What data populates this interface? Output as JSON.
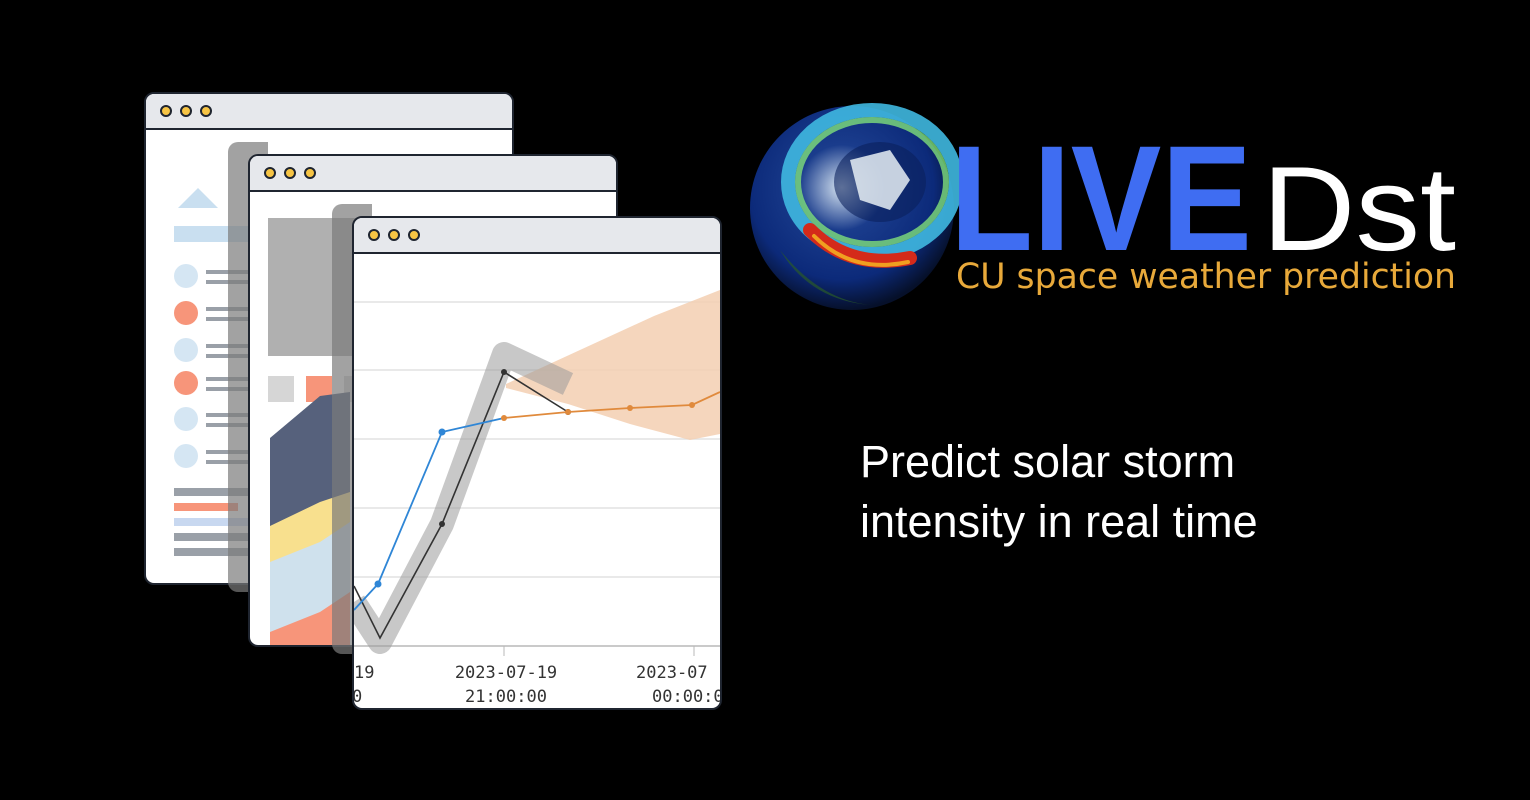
{
  "brand": {
    "name_part1": "LIVE",
    "name_part2": "Dst",
    "subtitle": "CU space weather prediction"
  },
  "tagline": {
    "line1": "Predict solar storm",
    "line2": "intensity in real time"
  },
  "colors": {
    "background": "#000000",
    "brand_blue": "#3f6df2",
    "brand_white": "#ffffff",
    "subtitle_gold": "#e8a93a",
    "window_dot": "#f6c444",
    "observed_series": "#2f86d6",
    "forecast_series": "#e08a3c",
    "model_series": "#333333"
  },
  "icons": {
    "logo": "globe-aurora-icon",
    "window_controls": "traffic-dots-icon"
  },
  "chart_data": {
    "type": "line",
    "x_tick_labels": [
      {
        "date": "19",
        "time": "0"
      },
      {
        "date": "2023-07-19",
        "time": "21:00:00"
      },
      {
        "date": "2023-07",
        "time": "00:00:0"
      }
    ]
  }
}
